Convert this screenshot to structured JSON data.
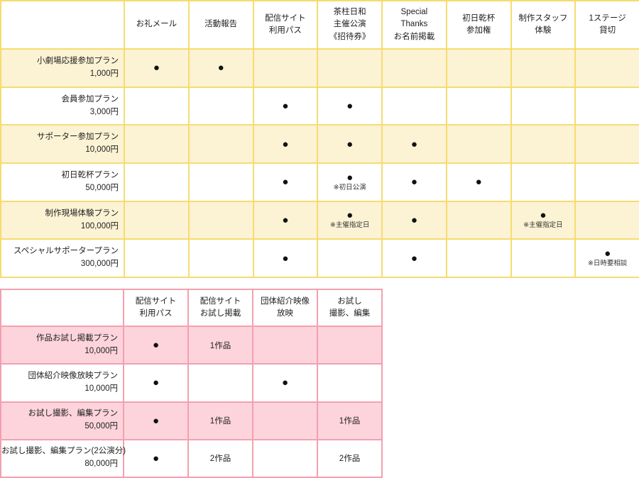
{
  "marks": {
    "included_dot": "●"
  },
  "tables": [
    {
      "id": "rewards",
      "name": "theater-support-plan-table",
      "theme": {
        "border_color": "#F6DC6F",
        "highlight_color": "#FCF3D4"
      },
      "corner_label": "",
      "columns": [
        "お礼メール",
        "活動報告",
        "配信サイト\n利用パス",
        "茶柱日和\n主催公演\n《招待券》",
        "Special\nThanks\nお名前掲載",
        "初日乾杯\n参加権",
        "制作スタッフ\n体験",
        "1ステージ\n貸切"
      ],
      "rows": [
        {
          "plan": "小劇場応援参加プラン",
          "price": "1,000円",
          "cells": [
            {
              "mark": "dot"
            },
            {
              "mark": "dot"
            },
            {},
            {},
            {},
            {},
            {},
            {}
          ]
        },
        {
          "plan": "会員参加プラン",
          "price": "3,000円",
          "cells": [
            {},
            {},
            {
              "mark": "dot"
            },
            {
              "mark": "dot"
            },
            {},
            {},
            {},
            {}
          ]
        },
        {
          "plan": "サポーター参加プラン",
          "price": "10,000円",
          "cells": [
            {},
            {},
            {
              "mark": "dot"
            },
            {
              "mark": "dot"
            },
            {
              "mark": "dot"
            },
            {},
            {},
            {}
          ]
        },
        {
          "plan": "初日乾杯プラン",
          "price": "50,000円",
          "cells": [
            {},
            {},
            {
              "mark": "dot"
            },
            {
              "mark": "dot",
              "note": "※初日公演"
            },
            {
              "mark": "dot"
            },
            {
              "mark": "dot"
            },
            {},
            {}
          ]
        },
        {
          "plan": "制作現場体験プラン",
          "price": "100,000円",
          "cells": [
            {},
            {},
            {
              "mark": "dot"
            },
            {
              "mark": "dot",
              "note": "※主催指定日"
            },
            {
              "mark": "dot"
            },
            {},
            {
              "mark": "dot",
              "note": "※主催指定日"
            },
            {}
          ]
        },
        {
          "plan": "スペシャルサポータープラン",
          "price": "300,000円",
          "cells": [
            {},
            {},
            {
              "mark": "dot"
            },
            {},
            {
              "mark": "dot"
            },
            {},
            {},
            {
              "mark": "dot",
              "note": "※日時要相談"
            }
          ]
        }
      ]
    },
    {
      "id": "video",
      "name": "video-trial-plan-table",
      "theme": {
        "border_color": "#F3A0B0",
        "highlight_color": "#FDD4DC"
      },
      "corner_label": "",
      "columns": [
        "配信サイト\n利用パス",
        "配信サイト\nお試し掲載",
        "団体紹介映像\n放映",
        "お試し\n撮影、編集"
      ],
      "rows": [
        {
          "plan": "作品お試し掲載プラン",
          "price": "10,000円",
          "cells": [
            {
              "mark": "dot"
            },
            {
              "text": "1作品"
            },
            {},
            {}
          ]
        },
        {
          "plan": "団体紹介映像放映プラン",
          "price": "10,000円",
          "cells": [
            {
              "mark": "dot"
            },
            {},
            {
              "mark": "dot"
            },
            {}
          ]
        },
        {
          "plan": "お試し撮影、編集プラン",
          "price": "50,000円",
          "cells": [
            {
              "mark": "dot"
            },
            {
              "text": "1作品"
            },
            {},
            {
              "text": "1作品"
            }
          ]
        },
        {
          "plan": "お試し撮影、編集プラン(2公演分)",
          "price": "80,000円",
          "cells": [
            {
              "mark": "dot"
            },
            {
              "text": "2作品"
            },
            {},
            {
              "text": "2作品"
            }
          ]
        }
      ]
    }
  ]
}
